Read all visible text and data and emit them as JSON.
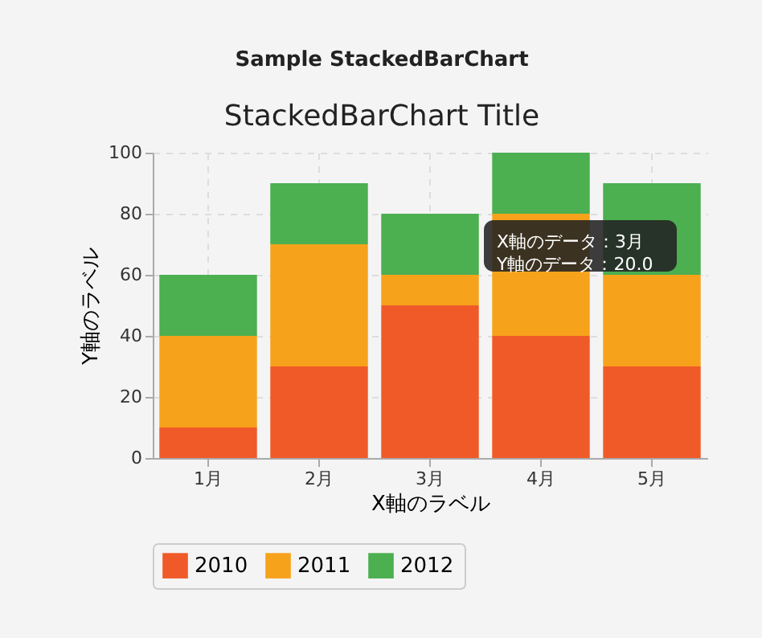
{
  "chart_data": {
    "type": "bar",
    "stacked": true,
    "title": "StackedBarChart Title",
    "xlabel": "X軸のラベル",
    "ylabel": "Y軸のラベル",
    "categories": [
      "1月",
      "2月",
      "3月",
      "4月",
      "5月"
    ],
    "series": [
      {
        "name": "2010",
        "color": "#f05a28",
        "values": [
          10,
          30,
          50,
          40,
          30
        ]
      },
      {
        "name": "2011",
        "color": "#f7a21b",
        "values": [
          30,
          40,
          10,
          40,
          30
        ]
      },
      {
        "name": "2012",
        "color": "#4caf50",
        "values": [
          20,
          20,
          20,
          20,
          30
        ]
      }
    ],
    "ylim": [
      0,
      100
    ],
    "yticks": [
      0,
      20,
      40,
      60,
      80,
      100
    ],
    "grid": true,
    "legend": "bottom",
    "annotations": [
      "Sample StackedBarChart",
      "X軸のデータ：3月",
      "Y軸のデータ：20.0"
    ]
  }
}
